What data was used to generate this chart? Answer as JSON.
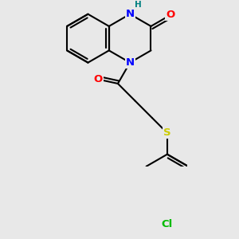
{
  "background_color": "#e8e8e8",
  "bond_color": "#000000",
  "bond_width": 1.5,
  "atom_colors": {
    "N": "#0000ff",
    "O": "#ff0000",
    "S": "#cccc00",
    "Cl": "#00bb00",
    "H": "#008080",
    "C": "#000000"
  },
  "figsize": [
    3.0,
    3.0
  ],
  "dpi": 100,
  "xlim": [
    -2.8,
    2.8
  ],
  "ylim": [
    -3.8,
    2.8
  ]
}
